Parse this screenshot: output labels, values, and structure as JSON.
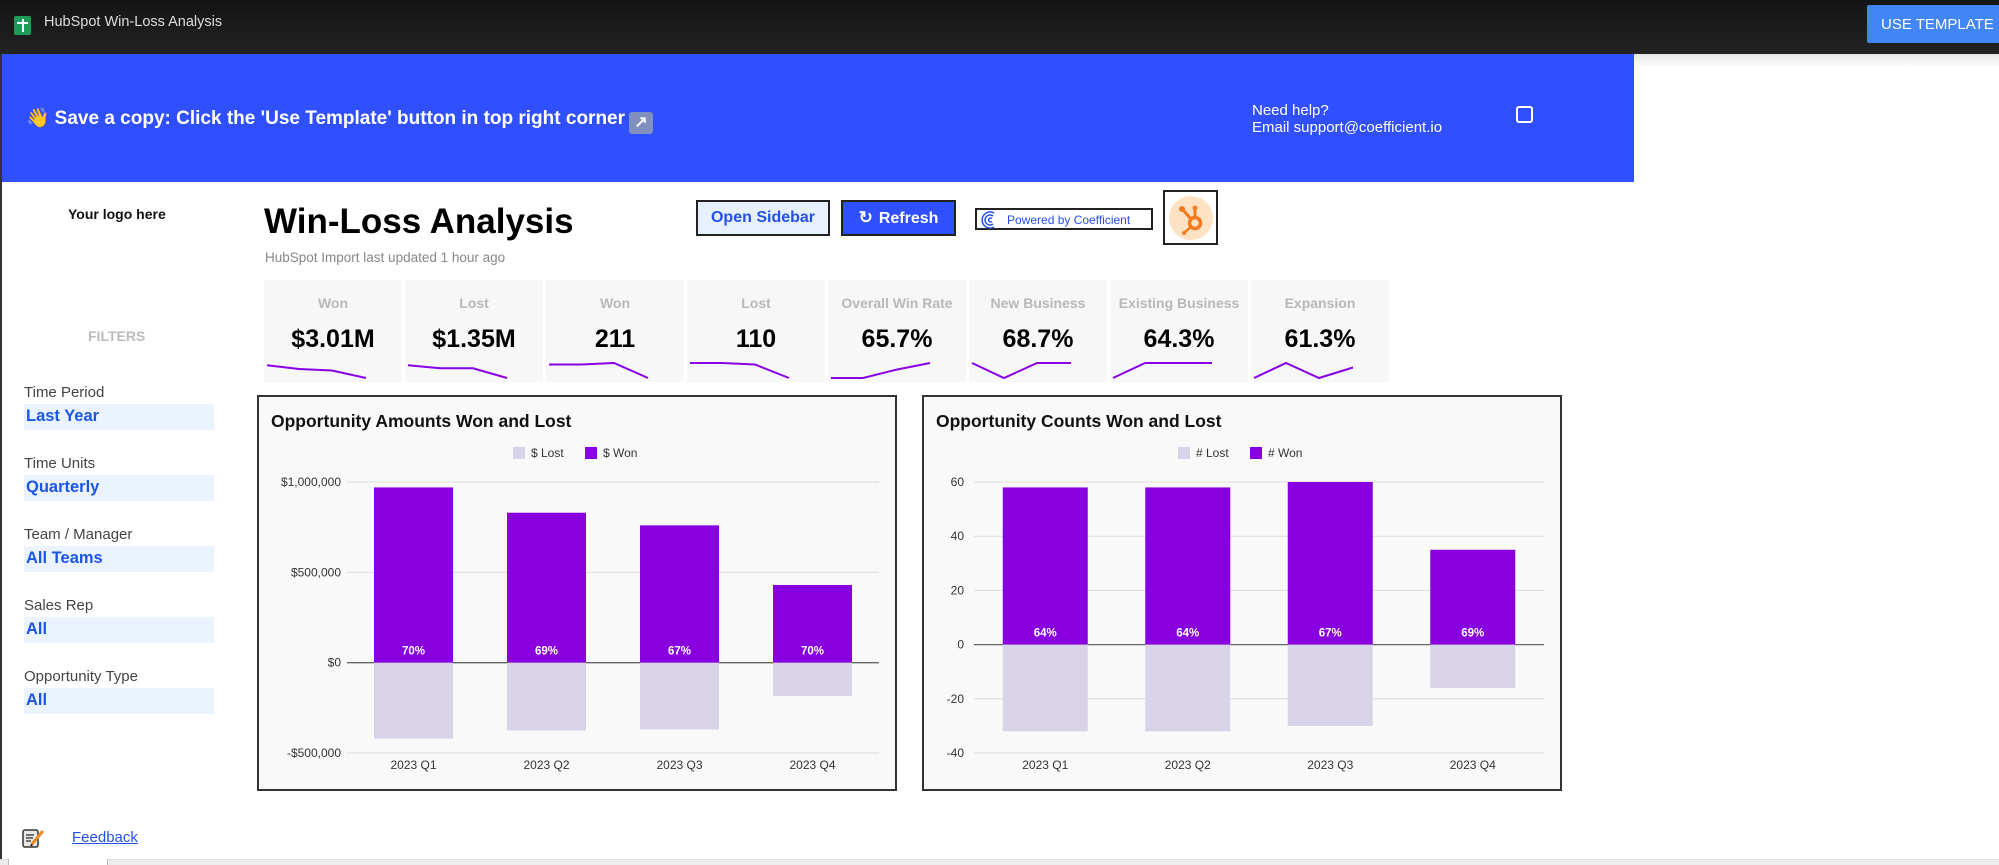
{
  "app": {
    "title": "HubSpot Win-Loss Analysis",
    "use_template_label": "USE TEMPLATE"
  },
  "banner": {
    "message": "Save a copy: Click the 'Use Template' button in top right corner",
    "wave_emoji": "👋",
    "arrow_glyph": "↗",
    "help_line1": "Need help?",
    "help_line2": "Email support@coefficient.io",
    "color": "#3050ff"
  },
  "sidebar": {
    "logo_text": "Your logo here",
    "filters_heading": "FILTERS",
    "filters": [
      {
        "label": "Time Period",
        "value": "Last Year"
      },
      {
        "label": "Time Units",
        "value": "Quarterly"
      },
      {
        "label": "Team / Manager",
        "value": "All Teams"
      },
      {
        "label": "Sales Rep",
        "value": "All"
      },
      {
        "label": "Opportunity Type",
        "value": "All"
      }
    ],
    "feedback_label": "Feedback"
  },
  "header": {
    "title": "Win-Loss Analysis",
    "subtitle": "HubSpot Import last updated 1 hour ago",
    "open_sidebar_label": "Open Sidebar",
    "refresh_label": "Refresh",
    "refresh_icon": "↻",
    "powered_label": "Powered by Coefficient"
  },
  "kpis": [
    {
      "label": "Won",
      "value": "$3.01M",
      "trend": [
        0.85,
        0.6,
        0.5,
        0.0
      ]
    },
    {
      "label": "Lost",
      "value": "$1.35M",
      "trend": [
        0.85,
        0.65,
        0.65,
        0.0
      ]
    },
    {
      "label": "Won",
      "value": "211",
      "trend": [
        0.9,
        0.9,
        1.0,
        0.0
      ]
    },
    {
      "label": "Lost",
      "value": "110",
      "trend": [
        1.0,
        1.0,
        0.9,
        0.0
      ]
    },
    {
      "label": "Overall Win Rate",
      "value": "65.7%",
      "trend": [
        0.0,
        0.0,
        0.55,
        1.0
      ]
    },
    {
      "label": "New Business",
      "value": "68.7%",
      "trend": [
        1.0,
        0.0,
        1.0,
        1.0
      ]
    },
    {
      "label": "Existing Business",
      "value": "64.3%",
      "trend": [
        0.0,
        1.0,
        1.0,
        1.0
      ]
    },
    {
      "label": "Expansion",
      "value": "61.3%",
      "trend": [
        0.0,
        1.0,
        0.0,
        0.7
      ]
    }
  ],
  "chart_data": [
    {
      "type": "bar",
      "stacked": true,
      "title": "Opportunity Amounts Won and Lost",
      "categories": [
        "2023 Q1",
        "2023 Q2",
        "2023 Q3",
        "2023 Q4"
      ],
      "series": [
        {
          "name": "$ Lost",
          "color": "#d9d3ea",
          "values": [
            -420000,
            -375000,
            -370000,
            -185000
          ]
        },
        {
          "name": "$ Won",
          "color": "#8800e0",
          "values": [
            970000,
            830000,
            760000,
            430000
          ]
        }
      ],
      "data_labels": [
        "70%",
        "69%",
        "67%",
        "70%"
      ],
      "yticks": [
        -500000,
        0,
        500000,
        1000000
      ],
      "ytick_labels": [
        "-$500,000",
        "$0",
        "$500,000",
        "$1,000,000"
      ],
      "ylim": [
        -500000,
        1000000
      ],
      "legend": "top",
      "grid": true
    },
    {
      "type": "bar",
      "stacked": true,
      "title": "Opportunity Counts Won and Lost",
      "categories": [
        "2023 Q1",
        "2023 Q2",
        "2023 Q3",
        "2023 Q4"
      ],
      "series": [
        {
          "name": "# Lost",
          "color": "#d9d3ea",
          "values": [
            -32,
            -32,
            -30,
            -16
          ]
        },
        {
          "name": "# Won",
          "color": "#8800e0",
          "values": [
            58,
            58,
            60,
            35
          ]
        }
      ],
      "data_labels": [
        "64%",
        "64%",
        "67%",
        "69%"
      ],
      "yticks": [
        -40,
        -20,
        0,
        20,
        40,
        60
      ],
      "ytick_labels": [
        "-40",
        "-20",
        "0",
        "20",
        "40",
        "60"
      ],
      "ylim": [
        -40,
        60
      ],
      "legend": "top",
      "grid": true
    }
  ]
}
